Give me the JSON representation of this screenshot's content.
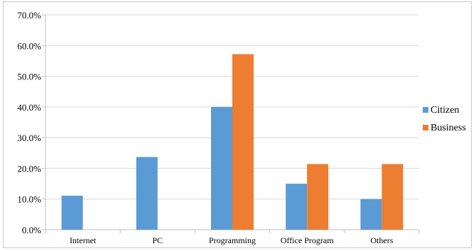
{
  "chart_data": {
    "type": "bar",
    "title": "",
    "xlabel": "",
    "ylabel": "",
    "categories": [
      "Internet",
      "PC",
      "Programming",
      "Office Program",
      "Others"
    ],
    "series": [
      {
        "name": "Citizen",
        "color": "#5b9bd5",
        "values": [
          11.1,
          23.7,
          40.0,
          15.0,
          10.0
        ]
      },
      {
        "name": "Business",
        "color": "#ed7d31",
        "values": [
          0.0,
          0.0,
          57.2,
          21.4,
          21.4
        ]
      }
    ],
    "ylim": [
      0,
      70
    ],
    "yticks": [
      "0.0%",
      "10.0%",
      "20.0%",
      "30.0%",
      "40.0%",
      "50.0%",
      "60.0%",
      "70.0%"
    ],
    "grid": true,
    "legend_position": "right"
  }
}
